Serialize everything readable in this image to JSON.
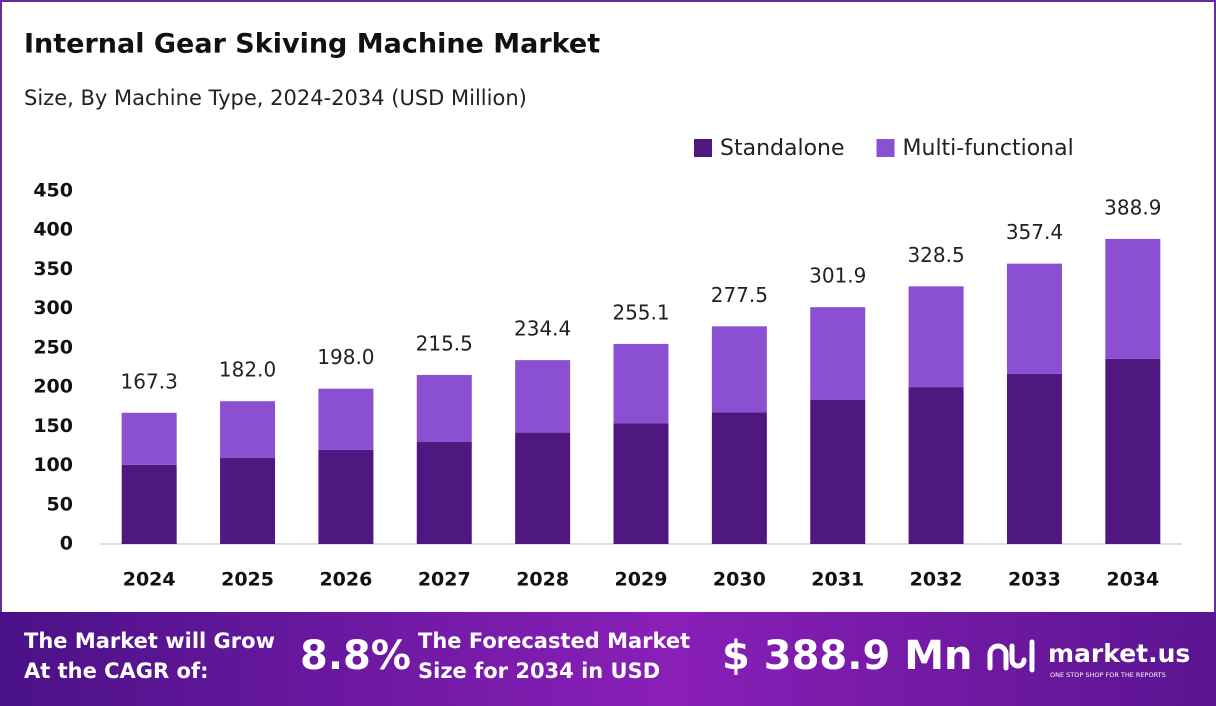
{
  "chart_data": {
    "type": "stacked-bar",
    "title": "Internal Gear Skiving Machine Market",
    "subtitle": "Size, By Machine Type, 2024-2034 (USD Million)",
    "categories": [
      "2024",
      "2025",
      "2026",
      "2027",
      "2028",
      "2029",
      "2030",
      "2031",
      "2032",
      "2033",
      "2034"
    ],
    "series": [
      {
        "name": "Standalone",
        "color": "#4f1880",
        "values": [
          101,
          110,
          120,
          130,
          142,
          154,
          168,
          184,
          200,
          217,
          236
        ]
      },
      {
        "name": "Multi-functional",
        "color": "#8b4fd1",
        "values": [
          66.3,
          72.0,
          78.0,
          85.5,
          92.4,
          101.1,
          109.5,
          117.9,
          128.5,
          140.4,
          152.9
        ]
      }
    ],
    "totals": [
      167.3,
      182.0,
      198.0,
      215.5,
      234.4,
      255.1,
      277.5,
      301.9,
      328.5,
      357.4,
      388.9
    ],
    "total_labels": [
      "167.3",
      "182.0",
      "198.0",
      "215.5",
      "234.4",
      "255.1",
      "277.5",
      "301.9",
      "328.5",
      "357.4",
      "388.9"
    ],
    "ylim": [
      0,
      450
    ],
    "yticks": [
      0,
      50,
      100,
      150,
      200,
      250,
      300,
      350,
      400,
      450
    ],
    "grid": false,
    "legend": "top-right"
  },
  "footer": {
    "cagr_text": [
      "The Market will Grow",
      "At the CAGR of:"
    ],
    "cagr_value": "8.8%",
    "forecast_text": [
      "The Forecasted Market",
      "Size for 2034 in USD"
    ],
    "forecast_value": "$ 388.9 Mn",
    "brand": "market.us",
    "tagline": "ONE STOP SHOP FOR THE REPORTS"
  }
}
